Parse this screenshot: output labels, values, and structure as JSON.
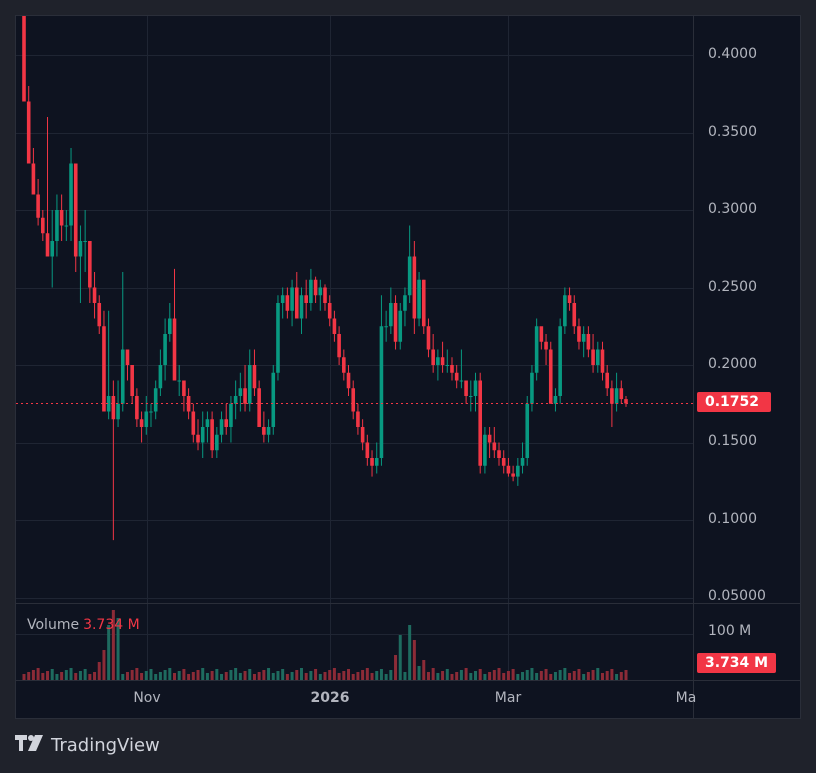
{
  "chart_data": {
    "type": "candlestick",
    "title": "",
    "price_axis": {
      "ticks": [
        "0.4000",
        "0.3500",
        "0.3000",
        "0.2500",
        "0.2000",
        "0.1500",
        "0.1000",
        "0.05000"
      ],
      "tick_values": [
        0.4,
        0.35,
        0.3,
        0.25,
        0.2,
        0.15,
        0.1,
        0.05
      ],
      "ylim": [
        0.05,
        0.425
      ]
    },
    "time_axis": {
      "ticks": [
        "Nov",
        "2026",
        "Mar",
        "Ma"
      ]
    },
    "last_price": "0.1752",
    "last_price_value": 0.1752,
    "volume": {
      "label": "Volume",
      "value": "3.734 M",
      "axis_tick": "100 M",
      "tag": "3.734 M"
    },
    "series_description": "Daily candles: sharp decline from ~0.42 to ~0.17 in Oct, wick low ~0.087, range 0.14-0.26 through Nov-Dec, spike to ~0.29 early Jan, decline to ~0.125 mid-Feb, rally to ~0.245 in Mar, now 0.1752",
    "ohlc": [
      [
        0.43,
        0.43,
        0.37,
        0.37
      ],
      [
        0.37,
        0.38,
        0.33,
        0.33
      ],
      [
        0.33,
        0.34,
        0.31,
        0.31
      ],
      [
        0.31,
        0.32,
        0.29,
        0.295
      ],
      [
        0.295,
        0.3,
        0.28,
        0.285
      ],
      [
        0.285,
        0.36,
        0.27,
        0.27
      ],
      [
        0.27,
        0.3,
        0.25,
        0.28
      ],
      [
        0.28,
        0.31,
        0.27,
        0.3
      ],
      [
        0.3,
        0.31,
        0.28,
        0.29
      ],
      [
        0.29,
        0.3,
        0.28,
        0.29
      ],
      [
        0.29,
        0.34,
        0.28,
        0.33
      ],
      [
        0.33,
        0.33,
        0.26,
        0.27
      ],
      [
        0.27,
        0.29,
        0.24,
        0.28
      ],
      [
        0.28,
        0.3,
        0.26,
        0.28
      ],
      [
        0.28,
        0.28,
        0.24,
        0.25
      ],
      [
        0.25,
        0.26,
        0.23,
        0.24
      ],
      [
        0.24,
        0.245,
        0.22,
        0.225
      ],
      [
        0.225,
        0.235,
        0.17,
        0.17
      ],
      [
        0.17,
        0.235,
        0.165,
        0.18
      ],
      [
        0.18,
        0.19,
        0.087,
        0.165
      ],
      [
        0.165,
        0.19,
        0.16,
        0.175
      ],
      [
        0.175,
        0.26,
        0.17,
        0.21
      ],
      [
        0.21,
        0.21,
        0.19,
        0.2
      ],
      [
        0.2,
        0.2,
        0.175,
        0.18
      ],
      [
        0.18,
        0.185,
        0.16,
        0.165
      ],
      [
        0.165,
        0.17,
        0.15,
        0.16
      ],
      [
        0.16,
        0.18,
        0.155,
        0.17
      ],
      [
        0.17,
        0.175,
        0.16,
        0.17
      ],
      [
        0.17,
        0.19,
        0.165,
        0.185
      ],
      [
        0.185,
        0.21,
        0.18,
        0.2
      ],
      [
        0.2,
        0.23,
        0.19,
        0.22
      ],
      [
        0.22,
        0.24,
        0.215,
        0.23
      ],
      [
        0.23,
        0.262,
        0.19,
        0.19
      ],
      [
        0.19,
        0.2,
        0.18,
        0.19
      ],
      [
        0.19,
        0.19,
        0.17,
        0.18
      ],
      [
        0.18,
        0.185,
        0.165,
        0.17
      ],
      [
        0.17,
        0.175,
        0.15,
        0.155
      ],
      [
        0.155,
        0.165,
        0.145,
        0.15
      ],
      [
        0.15,
        0.17,
        0.14,
        0.16
      ],
      [
        0.16,
        0.17,
        0.15,
        0.165
      ],
      [
        0.165,
        0.17,
        0.14,
        0.145
      ],
      [
        0.145,
        0.16,
        0.14,
        0.155
      ],
      [
        0.155,
        0.17,
        0.15,
        0.165
      ],
      [
        0.165,
        0.175,
        0.155,
        0.16
      ],
      [
        0.16,
        0.18,
        0.15,
        0.175
      ],
      [
        0.175,
        0.19,
        0.165,
        0.18
      ],
      [
        0.18,
        0.195,
        0.17,
        0.185
      ],
      [
        0.185,
        0.2,
        0.17,
        0.175
      ],
      [
        0.175,
        0.21,
        0.17,
        0.2
      ],
      [
        0.2,
        0.21,
        0.18,
        0.185
      ],
      [
        0.185,
        0.19,
        0.16,
        0.16
      ],
      [
        0.16,
        0.17,
        0.15,
        0.155
      ],
      [
        0.155,
        0.165,
        0.15,
        0.16
      ],
      [
        0.16,
        0.2,
        0.155,
        0.195
      ],
      [
        0.195,
        0.245,
        0.19,
        0.24
      ],
      [
        0.24,
        0.25,
        0.23,
        0.245
      ],
      [
        0.245,
        0.25,
        0.23,
        0.235
      ],
      [
        0.235,
        0.255,
        0.225,
        0.25
      ],
      [
        0.25,
        0.26,
        0.23,
        0.23
      ],
      [
        0.23,
        0.25,
        0.22,
        0.245
      ],
      [
        0.245,
        0.255,
        0.23,
        0.24
      ],
      [
        0.24,
        0.262,
        0.235,
        0.255
      ],
      [
        0.255,
        0.257,
        0.24,
        0.245
      ],
      [
        0.245,
        0.255,
        0.235,
        0.25
      ],
      [
        0.25,
        0.252,
        0.235,
        0.24
      ],
      [
        0.24,
        0.245,
        0.225,
        0.23
      ],
      [
        0.23,
        0.235,
        0.215,
        0.22
      ],
      [
        0.22,
        0.225,
        0.2,
        0.205
      ],
      [
        0.205,
        0.21,
        0.19,
        0.195
      ],
      [
        0.195,
        0.2,
        0.18,
        0.185
      ],
      [
        0.185,
        0.19,
        0.165,
        0.17
      ],
      [
        0.17,
        0.175,
        0.155,
        0.16
      ],
      [
        0.16,
        0.165,
        0.145,
        0.15
      ],
      [
        0.15,
        0.155,
        0.135,
        0.14
      ],
      [
        0.14,
        0.145,
        0.128,
        0.135
      ],
      [
        0.135,
        0.15,
        0.13,
        0.14
      ],
      [
        0.14,
        0.245,
        0.135,
        0.225
      ],
      [
        0.225,
        0.235,
        0.215,
        0.225
      ],
      [
        0.225,
        0.25,
        0.22,
        0.24
      ],
      [
        0.24,
        0.245,
        0.21,
        0.215
      ],
      [
        0.215,
        0.24,
        0.21,
        0.235
      ],
      [
        0.235,
        0.25,
        0.225,
        0.245
      ],
      [
        0.245,
        0.29,
        0.24,
        0.27
      ],
      [
        0.27,
        0.28,
        0.22,
        0.23
      ],
      [
        0.23,
        0.26,
        0.225,
        0.255
      ],
      [
        0.255,
        0.255,
        0.22,
        0.225
      ],
      [
        0.225,
        0.23,
        0.205,
        0.21
      ],
      [
        0.21,
        0.22,
        0.195,
        0.2
      ],
      [
        0.2,
        0.21,
        0.19,
        0.205
      ],
      [
        0.205,
        0.215,
        0.195,
        0.2
      ],
      [
        0.2,
        0.21,
        0.195,
        0.2
      ],
      [
        0.2,
        0.205,
        0.19,
        0.195
      ],
      [
        0.195,
        0.2,
        0.185,
        0.19
      ],
      [
        0.19,
        0.21,
        0.185,
        0.19
      ],
      [
        0.19,
        0.19,
        0.175,
        0.18
      ],
      [
        0.18,
        0.19,
        0.17,
        0.18
      ],
      [
        0.18,
        0.195,
        0.17,
        0.19
      ],
      [
        0.19,
        0.195,
        0.13,
        0.135
      ],
      [
        0.135,
        0.16,
        0.13,
        0.155
      ],
      [
        0.155,
        0.16,
        0.14,
        0.15
      ],
      [
        0.15,
        0.16,
        0.14,
        0.145
      ],
      [
        0.145,
        0.15,
        0.135,
        0.14
      ],
      [
        0.14,
        0.145,
        0.13,
        0.135
      ],
      [
        0.135,
        0.14,
        0.128,
        0.13
      ],
      [
        0.13,
        0.135,
        0.125,
        0.128
      ],
      [
        0.128,
        0.14,
        0.122,
        0.135
      ],
      [
        0.135,
        0.15,
        0.13,
        0.14
      ],
      [
        0.14,
        0.18,
        0.135,
        0.175
      ],
      [
        0.175,
        0.2,
        0.17,
        0.195
      ],
      [
        0.195,
        0.23,
        0.19,
        0.225
      ],
      [
        0.225,
        0.22,
        0.21,
        0.215
      ],
      [
        0.215,
        0.22,
        0.2,
        0.21
      ],
      [
        0.21,
        0.215,
        0.175,
        0.175
      ],
      [
        0.175,
        0.185,
        0.17,
        0.18
      ],
      [
        0.18,
        0.23,
        0.175,
        0.225
      ],
      [
        0.225,
        0.25,
        0.22,
        0.245
      ],
      [
        0.245,
        0.25,
        0.235,
        0.24
      ],
      [
        0.24,
        0.245,
        0.22,
        0.225
      ],
      [
        0.225,
        0.23,
        0.21,
        0.215
      ],
      [
        0.215,
        0.225,
        0.205,
        0.22
      ],
      [
        0.22,
        0.225,
        0.205,
        0.21
      ],
      [
        0.21,
        0.22,
        0.195,
        0.2
      ],
      [
        0.2,
        0.215,
        0.195,
        0.21
      ],
      [
        0.21,
        0.215,
        0.19,
        0.195
      ],
      [
        0.195,
        0.2,
        0.18,
        0.185
      ],
      [
        0.185,
        0.19,
        0.16,
        0.175
      ],
      [
        0.175,
        0.195,
        0.17,
        0.185
      ],
      [
        0.185,
        0.19,
        0.175,
        0.178
      ],
      [
        0.178,
        0.18,
        0.173,
        0.1752
      ]
    ]
  },
  "price_tag": "0.1752",
  "volume_tag": "3.734 M",
  "volume_axis_tick": "100 M",
  "volume_label": "Volume",
  "volume_value": "3.734 M",
  "time_labels": [
    "Nov",
    "2026",
    "Mar",
    "Ma"
  ],
  "logo_text": "TradingView",
  "colors": {
    "up": "#089981",
    "down": "#f23645",
    "up_vol": "#1e6b5f",
    "down_vol": "#8c2b37",
    "grid": "#1f2533",
    "background": "#0e1320",
    "outer": "#1f222b"
  }
}
